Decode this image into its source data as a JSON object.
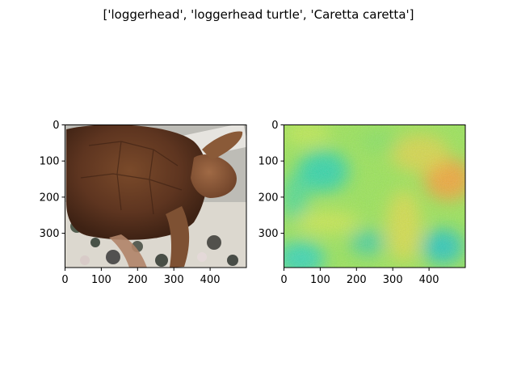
{
  "figure": {
    "title": "['loggerhead', 'loggerhead turtle', 'Caretta caretta']"
  },
  "chart_data": [
    {
      "type": "image",
      "content": "photo of a loggerhead turtle on a floral cloth",
      "xlim": [
        0,
        500
      ],
      "ylim": [
        0,
        395
      ],
      "xticks": [
        0,
        100,
        200,
        300,
        400
      ],
      "yticks": [
        0,
        100,
        200,
        300
      ],
      "colors": {
        "shell": "#6b3e22",
        "skin": "#8b5a3a",
        "background": "#bdbcb6",
        "cloth": "#e8e6df"
      }
    },
    {
      "type": "heatmap",
      "content": "saliency map overlay",
      "xlim": [
        0,
        500
      ],
      "ylim": [
        0,
        395
      ],
      "xticks": [
        0,
        100,
        200,
        300,
        400
      ],
      "yticks": [
        0,
        100,
        200,
        300
      ],
      "colors": {
        "base": "#9be35a",
        "low": "#2fd3b0",
        "high": "#f5a23a",
        "mid": "#e7e34a"
      }
    }
  ]
}
